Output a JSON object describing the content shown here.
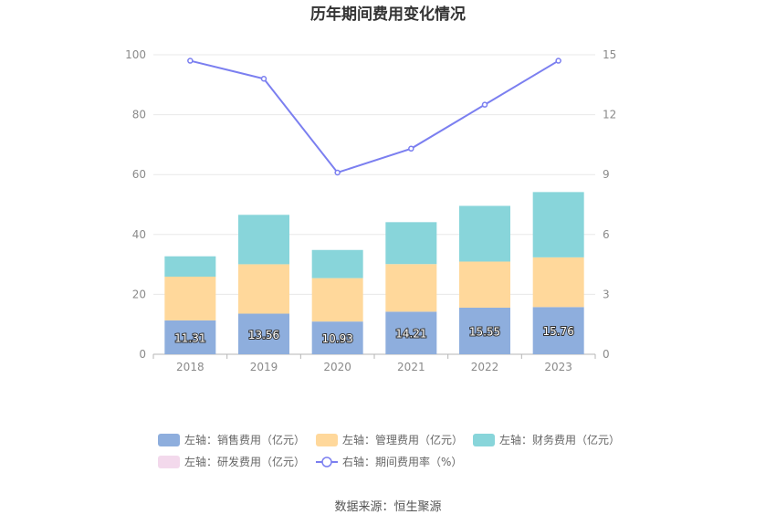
{
  "chart_data": {
    "type": "bar+line",
    "title": "历年期间费用变化情况",
    "categories": [
      "2018",
      "2019",
      "2020",
      "2021",
      "2022",
      "2023"
    ],
    "left_axis": {
      "min": 0,
      "max": 100,
      "ticks": [
        "0",
        "20",
        "40",
        "60",
        "80",
        "100"
      ]
    },
    "right_axis": {
      "min": 0,
      "max": 15,
      "ticks": [
        "0",
        "3",
        "6",
        "9",
        "12",
        "15"
      ]
    },
    "series": [
      {
        "name": "左轴：销售费用（亿元）",
        "axis": "left",
        "kind": "bar",
        "color": "#8eaedd",
        "values": [
          11.31,
          13.56,
          10.93,
          14.21,
          15.55,
          15.76
        ],
        "labels": [
          "11.31",
          "13.56",
          "10.93",
          "14.21",
          "15.55",
          "15.76"
        ]
      },
      {
        "name": "左轴：管理费用（亿元）",
        "axis": "left",
        "kind": "bar",
        "color": "#ffd89b",
        "values": [
          14.6,
          16.5,
          14.5,
          15.9,
          15.4,
          16.6
        ]
      },
      {
        "name": "左轴：财务费用（亿元）",
        "axis": "left",
        "kind": "bar",
        "color": "#88d5da",
        "values": [
          6.8,
          16.5,
          9.4,
          14.0,
          18.6,
          21.8
        ]
      },
      {
        "name": "左轴：研发费用（亿元）",
        "axis": "left",
        "kind": "bar",
        "color": "#f3d9ec",
        "values": [
          0,
          0,
          0,
          0,
          0,
          0
        ]
      },
      {
        "name": "右轴：期间费用率（%）",
        "axis": "right",
        "kind": "line",
        "color": "#7b7ff0",
        "values": [
          14.7,
          13.8,
          9.1,
          10.3,
          12.5,
          14.7
        ]
      }
    ]
  },
  "source_label": "数据来源：恒生聚源"
}
